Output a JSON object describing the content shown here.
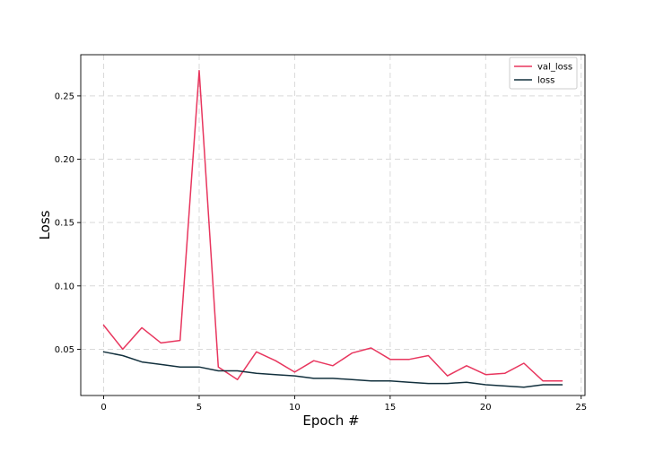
{
  "chart_data": {
    "type": "line",
    "title": "",
    "xlabel": "Epoch #",
    "ylabel": "Loss",
    "xlim": [
      -1.2,
      25.2
    ],
    "ylim": [
      0.0135,
      0.2825
    ],
    "xticks": [
      0,
      5,
      10,
      15,
      20,
      25
    ],
    "yticks": [
      0.05,
      0.1,
      0.15,
      0.2,
      0.25
    ],
    "xtick_labels": [
      "0",
      "5",
      "10",
      "15",
      "20",
      "25"
    ],
    "ytick_labels": [
      "0.05",
      "0.10",
      "0.15",
      "0.20",
      "0.25"
    ],
    "grid": true,
    "legend_position": "top-right",
    "x": [
      0,
      1,
      2,
      3,
      4,
      5,
      6,
      7,
      8,
      9,
      10,
      11,
      12,
      13,
      14,
      15,
      16,
      17,
      18,
      19,
      20,
      21,
      22,
      23,
      24
    ],
    "series": [
      {
        "name": "val_loss",
        "color": "#e8365e",
        "values": [
          0.069,
          0.05,
          0.067,
          0.055,
          0.057,
          0.27,
          0.036,
          0.026,
          0.048,
          0.041,
          0.032,
          0.041,
          0.037,
          0.047,
          0.051,
          0.042,
          0.042,
          0.045,
          0.029,
          0.037,
          0.03,
          0.031,
          0.039,
          0.025,
          0.025
        ]
      },
      {
        "name": "loss",
        "color": "#12303d",
        "values": [
          0.048,
          0.045,
          0.04,
          0.038,
          0.036,
          0.036,
          0.033,
          0.033,
          0.031,
          0.03,
          0.029,
          0.027,
          0.027,
          0.026,
          0.025,
          0.025,
          0.024,
          0.023,
          0.023,
          0.024,
          0.022,
          0.021,
          0.02,
          0.022,
          0.022
        ]
      }
    ]
  }
}
